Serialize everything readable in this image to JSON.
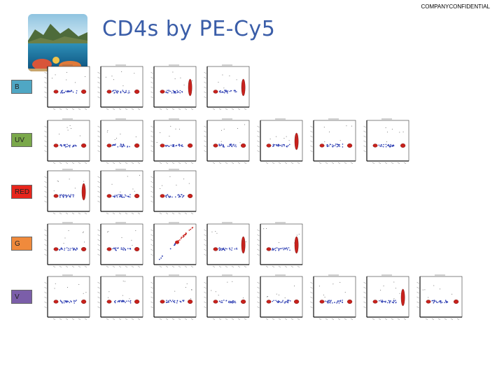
{
  "header": {
    "confidential": "COMPANYCONFIDENTIAL",
    "title": "CD4s by PE-Cy5"
  },
  "logo": {
    "icon": "ocean-reef-photo"
  },
  "colors": {
    "title": "#3a5da8",
    "label_B": "#4fa7c4",
    "label_UV": "#7aa84a",
    "label_RED": "#e8251c",
    "label_G": "#f08a3c",
    "label_V": "#7b5ea9",
    "population_red": "#c8211c",
    "population_blue": "#2e3fb3"
  },
  "rows": [
    {
      "label": "B",
      "plots": [
        {
          "blue": 0.62,
          "red": 0.86,
          "tall": false
        },
        {
          "blue": 0.62,
          "red": 0.86,
          "tall": false
        },
        {
          "blue": 0.62,
          "red": 0.86,
          "tall": true
        },
        {
          "blue": 0.62,
          "red": 0.86,
          "tall": true
        }
      ]
    },
    {
      "label": "UV",
      "plots": [
        {
          "blue": 0.6,
          "red": 0.86,
          "tall": false
        },
        {
          "blue": 0.6,
          "red": 0.86,
          "tall": false
        },
        {
          "blue": 0.6,
          "red": 0.86,
          "tall": false
        },
        {
          "blue": 0.6,
          "red": 0.86,
          "tall": false
        },
        {
          "blue": 0.6,
          "red": 0.86,
          "tall": true
        },
        {
          "blue": 0.6,
          "red": 0.86,
          "tall": false
        },
        {
          "blue": 0.6,
          "red": 0.86,
          "tall": false
        }
      ]
    },
    {
      "label": "RED",
      "plots": [
        {
          "blue": 0.5,
          "red": 0.86,
          "tall": true
        },
        {
          "blue": 0.62,
          "red": 0.86,
          "tall": false
        },
        {
          "blue": 0.62,
          "red": 0.86,
          "tall": false
        }
      ]
    },
    {
      "label": "G",
      "plots": [
        {
          "blue": 0.62,
          "red": 0.86,
          "tall": false
        },
        {
          "blue": 0.62,
          "red": 0.86,
          "tall": false
        },
        {
          "blue": 0.5,
          "red": 0.86,
          "tall": false,
          "diagonal": true
        },
        {
          "blue": 0.62,
          "red": 0.86,
          "tall": true
        },
        {
          "blue": 0.62,
          "red": 0.86,
          "tall": true
        }
      ]
    },
    {
      "label": "V",
      "plots": [
        {
          "blue": 0.62,
          "red": 0.86,
          "tall": false
        },
        {
          "blue": 0.62,
          "red": 0.86,
          "tall": false
        },
        {
          "blue": 0.62,
          "red": 0.86,
          "tall": false
        },
        {
          "blue": 0.62,
          "red": 0.86,
          "tall": false
        },
        {
          "blue": 0.62,
          "red": 0.86,
          "tall": false
        },
        {
          "blue": 0.62,
          "red": 0.86,
          "tall": false
        },
        {
          "blue": 0.62,
          "red": 0.86,
          "tall": true
        },
        {
          "blue": 0.62,
          "red": 0.86,
          "tall": false
        }
      ]
    }
  ]
}
